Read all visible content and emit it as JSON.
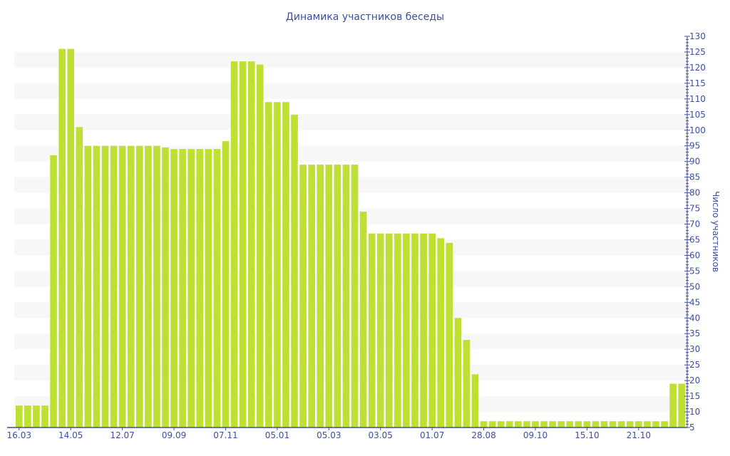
{
  "chart_data": {
    "type": "bar",
    "title": "Динамика участников беседы",
    "xlabel": "",
    "ylabel": "Число участников",
    "ylim": [
      5,
      130
    ],
    "y_axis_position": "right",
    "y_ticks": [
      5,
      10,
      15,
      20,
      25,
      30,
      35,
      40,
      45,
      50,
      55,
      60,
      65,
      70,
      75,
      80,
      85,
      90,
      95,
      100,
      105,
      110,
      115,
      120,
      125,
      130
    ],
    "x_tick_labels": [
      "16.03",
      "14.05",
      "12.07",
      "09.09",
      "07.11",
      "05.01",
      "05.03",
      "03.05",
      "01.07",
      "28.08",
      "09.10",
      "15.10",
      "21.10"
    ],
    "x_tick_every": 6,
    "grid": "alternating horizontal bands",
    "legend": "none",
    "colors": {
      "bar": "#bde032",
      "text": "#3d4f9f",
      "band": "#f7f7f7",
      "axis": "#3d4f9f"
    },
    "values": [
      12,
      12,
      12,
      12,
      92,
      126,
      126,
      101,
      95,
      95,
      95,
      95,
      95,
      95,
      95,
      95,
      95,
      94.5,
      94,
      94,
      94,
      94,
      94,
      94,
      96.5,
      122,
      122,
      122,
      121,
      109,
      109,
      109,
      105,
      89,
      89,
      89,
      89,
      89,
      89,
      89,
      74,
      67,
      67,
      67,
      67,
      67,
      67,
      67,
      67,
      65.5,
      64,
      40,
      33,
      22,
      7,
      7,
      7,
      7,
      7,
      7,
      7,
      7,
      7,
      7,
      7,
      7,
      7,
      7,
      7,
      7,
      7,
      7,
      7,
      7,
      7,
      7,
      19,
      19
    ]
  }
}
